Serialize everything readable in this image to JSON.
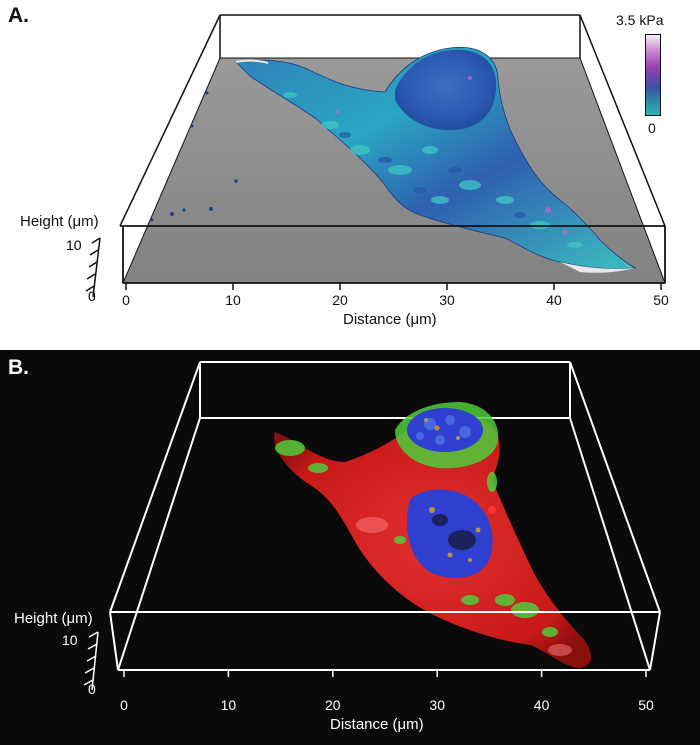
{
  "panel_a": {
    "letter": "A.",
    "colorbar": {
      "max_label": "3.5 kPa",
      "min_label": "0",
      "colors": [
        "#f4f0f6",
        "#9a3fb0",
        "#3d4fa8",
        "#2fb5b3"
      ]
    },
    "height_axis": {
      "label": "Height (μm)",
      "ticks": [
        "10",
        "0"
      ]
    },
    "distance_axis": {
      "label": "Distance (μm)",
      "ticks": [
        "0",
        "10",
        "20",
        "30",
        "40",
        "50"
      ]
    },
    "colors": {
      "substrate": "#8c8c8c",
      "frame": "#111111"
    }
  },
  "panel_b": {
    "letter": "B.",
    "height_axis": {
      "label": "Height (μm)",
      "ticks": [
        "10",
        "0"
      ]
    },
    "distance_axis": {
      "label": "Distance (μm)",
      "ticks": [
        "0",
        "10",
        "20",
        "30",
        "40",
        "50"
      ]
    },
    "colors": {
      "background": "#0a0a0a",
      "frame": "#ffffff",
      "membrane": "#d81a1a",
      "green": "#4fcc3a",
      "blue": "#2f3fcf"
    }
  }
}
